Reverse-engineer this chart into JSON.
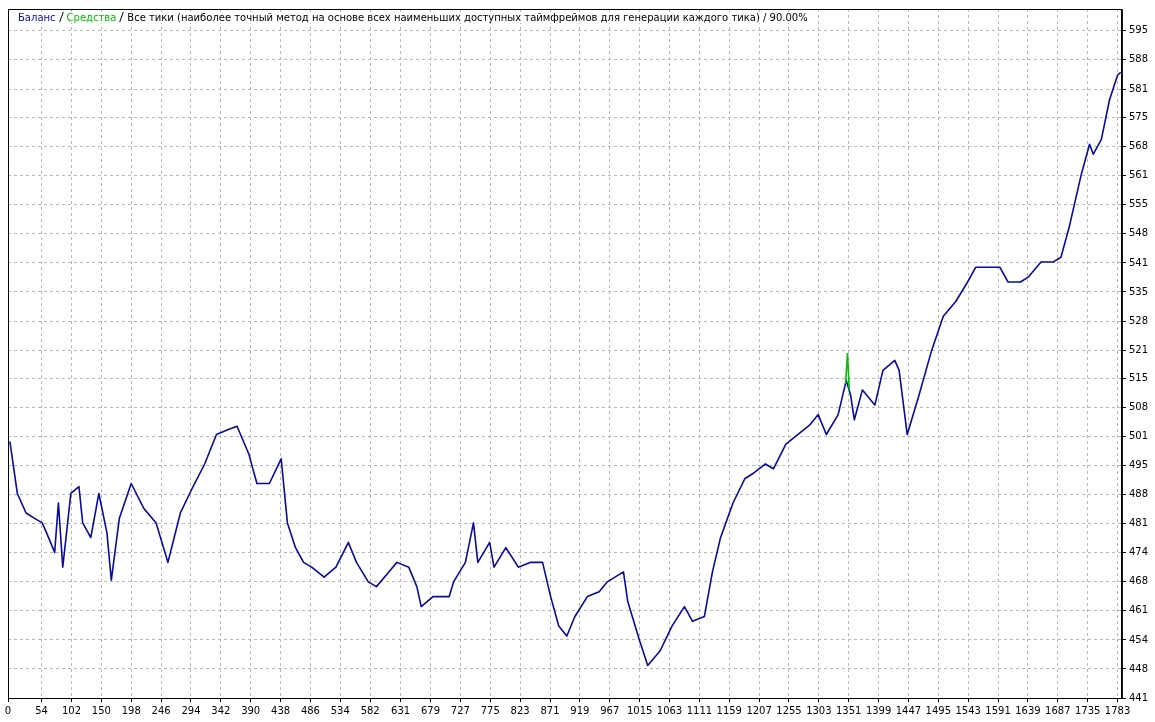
{
  "chart_data": {
    "type": "line",
    "title": "Все тики (наиболее точный метод на основе всех наименьших доступных таймфреймов для генерации каждого тика) / 90.00%",
    "legend": "top left",
    "grid": true,
    "marker": "none",
    "line_style": "solid",
    "xlim": [
      0,
      1790
    ],
    "xticks": [
      0,
      54,
      102,
      150,
      198,
      246,
      294,
      342,
      390,
      438,
      486,
      534,
      582,
      631,
      679,
      727,
      775,
      823,
      871,
      919,
      967,
      1015,
      1063,
      1111,
      1159,
      1207,
      1255,
      1303,
      1351,
      1399,
      1447,
      1495,
      1543,
      1591,
      1639,
      1687,
      1735,
      1783
    ],
    "ylim": [
      441,
      600
    ],
    "yticks": [
      {
        "value": 441,
        "label": "441"
      },
      {
        "value": 447.7,
        "label": "448"
      },
      {
        "value": 454.4,
        "label": "454"
      },
      {
        "value": 461.1,
        "label": "461"
      },
      {
        "value": 467.8,
        "label": "468"
      },
      {
        "value": 474.5,
        "label": "474"
      },
      {
        "value": 481.2,
        "label": "481"
      },
      {
        "value": 487.9,
        "label": "488"
      },
      {
        "value": 494.6,
        "label": "495"
      },
      {
        "value": 501.3,
        "label": "501"
      },
      {
        "value": 508.0,
        "label": "508"
      },
      {
        "value": 514.7,
        "label": "515"
      },
      {
        "value": 521.3,
        "label": "521"
      },
      {
        "value": 528.0,
        "label": "528"
      },
      {
        "value": 534.7,
        "label": "535"
      },
      {
        "value": 541.4,
        "label": "541"
      },
      {
        "value": 548.1,
        "label": "548"
      },
      {
        "value": 554.8,
        "label": "555"
      },
      {
        "value": 561.5,
        "label": "561"
      },
      {
        "value": 568.2,
        "label": "568"
      },
      {
        "value": 574.9,
        "label": "575"
      },
      {
        "value": 581.4,
        "label": "581"
      },
      {
        "value": 588.3,
        "label": "588"
      },
      {
        "value": 595.0,
        "label": "595"
      }
    ],
    "series": [
      {
        "name": "Баланс",
        "color": "#0a0aa0",
        "x": [
          3,
          15,
          29,
          42,
          55,
          62,
          75,
          81,
          88,
          101,
          114,
          120,
          133,
          146,
          159,
          166,
          179,
          198,
          218,
          238,
          257,
          277,
          296,
          316,
          335,
          355,
          368,
          387,
          400,
          420,
          439,
          449,
          462,
          475,
          488,
          508,
          527,
          547,
          560,
          579,
          592,
          612,
          625,
          644,
          657,
          664,
          683,
          709,
          716,
          735,
          748,
          755,
          774,
          781,
          800,
          820,
          840,
          859,
          872,
          885,
          898,
          911,
          931,
          950,
          963,
          989,
          996,
          1015,
          1028,
          1048,
          1067,
          1087,
          1100,
          1119,
          1132,
          1145,
          1165,
          1184,
          1197,
          1217,
          1230,
          1250,
          1269,
          1289,
          1302,
          1315,
          1334,
          1347,
          1354,
          1360,
          1373,
          1393,
          1406,
          1425,
          1432,
          1445,
          1464,
          1484,
          1503,
          1523,
          1542,
          1555,
          1575,
          1594,
          1607,
          1627,
          1640,
          1660,
          1679,
          1692,
          1705,
          1725,
          1738,
          1744,
          1757,
          1770,
          1783,
          1788
        ],
        "values": [
          500.2,
          488.2,
          483.7,
          482.5,
          481.4,
          479.1,
          474.6,
          486.0,
          471.2,
          488.2,
          489.8,
          481.4,
          478.0,
          488.2,
          479.1,
          468.2,
          482.5,
          490.5,
          484.8,
          481.4,
          472.3,
          483.7,
          489.4,
          495.0,
          501.8,
          503.0,
          503.7,
          497.3,
          490.5,
          490.5,
          496.2,
          481.4,
          475.7,
          472.3,
          471.2,
          468.9,
          471.2,
          476.9,
          472.3,
          467.8,
          466.7,
          470.1,
          472.3,
          471.2,
          466.7,
          462.1,
          464.4,
          464.4,
          467.8,
          472.3,
          481.4,
          472.3,
          476.9,
          471.2,
          475.7,
          471.2,
          472.3,
          472.3,
          464.4,
          457.6,
          455.3,
          459.8,
          464.4,
          465.5,
          467.8,
          470.1,
          463.2,
          454.2,
          448.5,
          451.9,
          457.6,
          462.1,
          458.7,
          459.8,
          470.1,
          478.0,
          486.0,
          491.6,
          492.8,
          495.0,
          493.9,
          499.6,
          501.8,
          504.1,
          506.4,
          501.8,
          506.4,
          514.3,
          510.9,
          505.2,
          512.1,
          508.6,
          516.6,
          518.9,
          516.6,
          501.8,
          510.9,
          521.1,
          529.1,
          532.5,
          537.0,
          540.4,
          540.4,
          540.4,
          537.0,
          537.0,
          538.2,
          541.6,
          541.6,
          542.7,
          549.5,
          562.0,
          568.8,
          566.5,
          569.9,
          579.0,
          584.7,
          585.4
        ]
      },
      {
        "name": "Средства",
        "color": "#00c000",
        "x": [
          1346,
          1349,
          1352
        ],
        "values": [
          513.5,
          520.5,
          512.0
        ]
      }
    ]
  }
}
